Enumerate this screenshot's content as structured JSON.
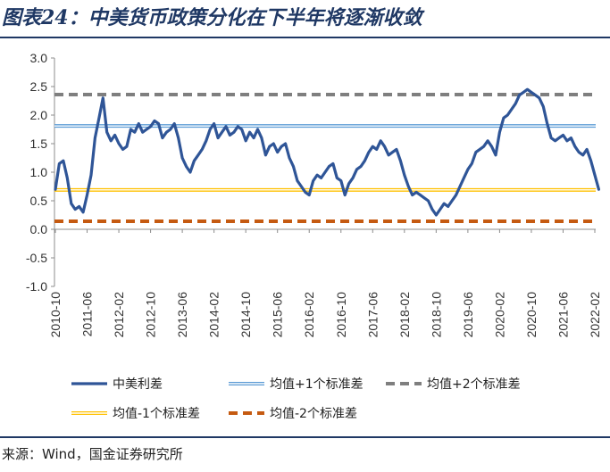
{
  "title": "图表24：中美货币政策分化在下半年将逐渐收敛",
  "source": "来源：Wind，国金证券研究所",
  "colors": {
    "spread": "#2f5597",
    "plus1": "#5b9bd5",
    "plus2": "#7f7f7f",
    "minus1": "#ffc000",
    "minus2": "#c55a11",
    "rule": "#1f3864"
  },
  "chart_data": {
    "type": "line",
    "title": "",
    "xlabel": "",
    "ylabel": "",
    "ylim": [
      -1.0,
      3.0
    ],
    "yticks": [
      "3.0",
      "2.5",
      "2.0",
      "1.5",
      "1.0",
      "0.5",
      "0.0",
      "-0.5",
      "-1.0"
    ],
    "xticks": [
      "2010-10",
      "2011-06",
      "2012-02",
      "2012-10",
      "2013-06",
      "2014-02",
      "2014-10",
      "2015-06",
      "2016-02",
      "2016-10",
      "2017-06",
      "2018-02",
      "2018-10",
      "2019-06",
      "2020-02",
      "2020-10",
      "2021-06",
      "2022-02"
    ],
    "grid": false,
    "legend_position": "bottom",
    "series": [
      {
        "name": "中美利差",
        "style": "line",
        "points": [
          [
            "2010-10",
            0.7
          ],
          [
            "2010-11",
            1.15
          ],
          [
            "2010-12",
            1.2
          ],
          [
            "2011-01",
            0.9
          ],
          [
            "2011-02",
            0.45
          ],
          [
            "2011-03",
            0.35
          ],
          [
            "2011-04",
            0.4
          ],
          [
            "2011-05",
            0.3
          ],
          [
            "2011-06",
            0.6
          ],
          [
            "2011-07",
            0.95
          ],
          [
            "2011-08",
            1.6
          ],
          [
            "2011-09",
            1.95
          ],
          [
            "2011-10",
            2.3
          ],
          [
            "2011-11",
            1.7
          ],
          [
            "2011-12",
            1.55
          ],
          [
            "2012-01",
            1.65
          ],
          [
            "2012-02",
            1.5
          ],
          [
            "2012-03",
            1.4
          ],
          [
            "2012-04",
            1.45
          ],
          [
            "2012-05",
            1.75
          ],
          [
            "2012-06",
            1.7
          ],
          [
            "2012-07",
            1.85
          ],
          [
            "2012-08",
            1.7
          ],
          [
            "2012-09",
            1.75
          ],
          [
            "2012-10",
            1.8
          ],
          [
            "2012-11",
            1.9
          ],
          [
            "2012-12",
            1.85
          ],
          [
            "2013-01",
            1.6
          ],
          [
            "2013-02",
            1.7
          ],
          [
            "2013-03",
            1.75
          ],
          [
            "2013-04",
            1.85
          ],
          [
            "2013-05",
            1.6
          ],
          [
            "2013-06",
            1.25
          ],
          [
            "2013-07",
            1.1
          ],
          [
            "2013-08",
            1.0
          ],
          [
            "2013-09",
            1.2
          ],
          [
            "2013-10",
            1.3
          ],
          [
            "2013-11",
            1.4
          ],
          [
            "2013-12",
            1.55
          ],
          [
            "2014-01",
            1.75
          ],
          [
            "2014-02",
            1.85
          ],
          [
            "2014-03",
            1.6
          ],
          [
            "2014-04",
            1.7
          ],
          [
            "2014-05",
            1.8
          ],
          [
            "2014-06",
            1.65
          ],
          [
            "2014-07",
            1.7
          ],
          [
            "2014-08",
            1.8
          ],
          [
            "2014-09",
            1.75
          ],
          [
            "2014-10",
            1.55
          ],
          [
            "2014-11",
            1.7
          ],
          [
            "2014-12",
            1.6
          ],
          [
            "2015-01",
            1.75
          ],
          [
            "2015-02",
            1.6
          ],
          [
            "2015-03",
            1.3
          ],
          [
            "2015-04",
            1.45
          ],
          [
            "2015-05",
            1.5
          ],
          [
            "2015-06",
            1.35
          ],
          [
            "2015-07",
            1.45
          ],
          [
            "2015-08",
            1.5
          ],
          [
            "2015-09",
            1.25
          ],
          [
            "2015-10",
            1.1
          ],
          [
            "2015-11",
            0.85
          ],
          [
            "2015-12",
            0.75
          ],
          [
            "2016-01",
            0.65
          ],
          [
            "2016-02",
            0.6
          ],
          [
            "2016-03",
            0.85
          ],
          [
            "2016-04",
            0.95
          ],
          [
            "2016-05",
            0.9
          ],
          [
            "2016-06",
            1.0
          ],
          [
            "2016-07",
            1.1
          ],
          [
            "2016-08",
            1.15
          ],
          [
            "2016-09",
            0.9
          ],
          [
            "2016-10",
            0.85
          ],
          [
            "2016-11",
            0.6
          ],
          [
            "2016-12",
            0.8
          ],
          [
            "2017-01",
            0.9
          ],
          [
            "2017-02",
            1.05
          ],
          [
            "2017-03",
            1.1
          ],
          [
            "2017-04",
            1.2
          ],
          [
            "2017-05",
            1.35
          ],
          [
            "2017-06",
            1.45
          ],
          [
            "2017-07",
            1.4
          ],
          [
            "2017-08",
            1.55
          ],
          [
            "2017-09",
            1.45
          ],
          [
            "2017-10",
            1.3
          ],
          [
            "2017-11",
            1.35
          ],
          [
            "2017-12",
            1.4
          ],
          [
            "2018-01",
            1.2
          ],
          [
            "2018-02",
            0.95
          ],
          [
            "2018-03",
            0.75
          ],
          [
            "2018-04",
            0.6
          ],
          [
            "2018-05",
            0.65
          ],
          [
            "2018-06",
            0.6
          ],
          [
            "2018-07",
            0.55
          ],
          [
            "2018-08",
            0.5
          ],
          [
            "2018-09",
            0.35
          ],
          [
            "2018-10",
            0.25
          ],
          [
            "2018-11",
            0.35
          ],
          [
            "2018-12",
            0.45
          ],
          [
            "2019-01",
            0.4
          ],
          [
            "2019-02",
            0.5
          ],
          [
            "2019-03",
            0.6
          ],
          [
            "2019-04",
            0.75
          ],
          [
            "2019-05",
            0.9
          ],
          [
            "2019-06",
            1.05
          ],
          [
            "2019-07",
            1.15
          ],
          [
            "2019-08",
            1.35
          ],
          [
            "2019-09",
            1.4
          ],
          [
            "2019-10",
            1.45
          ],
          [
            "2019-11",
            1.55
          ],
          [
            "2019-12",
            1.45
          ],
          [
            "2020-01",
            1.3
          ],
          [
            "2020-02",
            1.7
          ],
          [
            "2020-03",
            1.95
          ],
          [
            "2020-04",
            2.0
          ],
          [
            "2020-05",
            2.1
          ],
          [
            "2020-06",
            2.2
          ],
          [
            "2020-07",
            2.35
          ],
          [
            "2020-08",
            2.4
          ],
          [
            "2020-09",
            2.45
          ],
          [
            "2020-10",
            2.4
          ],
          [
            "2020-11",
            2.35
          ],
          [
            "2020-12",
            2.3
          ],
          [
            "2021-01",
            2.15
          ],
          [
            "2021-02",
            1.85
          ],
          [
            "2021-03",
            1.6
          ],
          [
            "2021-04",
            1.55
          ],
          [
            "2021-05",
            1.6
          ],
          [
            "2021-06",
            1.65
          ],
          [
            "2021-07",
            1.55
          ],
          [
            "2021-08",
            1.6
          ],
          [
            "2021-09",
            1.45
          ],
          [
            "2021-10",
            1.35
          ],
          [
            "2021-11",
            1.3
          ],
          [
            "2021-12",
            1.4
          ],
          [
            "2022-01",
            1.2
          ],
          [
            "2022-02",
            0.95
          ],
          [
            "2022-03",
            0.7
          ]
        ]
      },
      {
        "name": "均值+1个标准差",
        "style": "double",
        "constant": 1.81
      },
      {
        "name": "均值+2个标准差",
        "style": "dashed",
        "constant": 2.36
      },
      {
        "name": "均值-1个标准差",
        "style": "double",
        "constant": 0.69
      },
      {
        "name": "均值-2个标准差",
        "style": "dashed",
        "constant": 0.14
      }
    ]
  }
}
